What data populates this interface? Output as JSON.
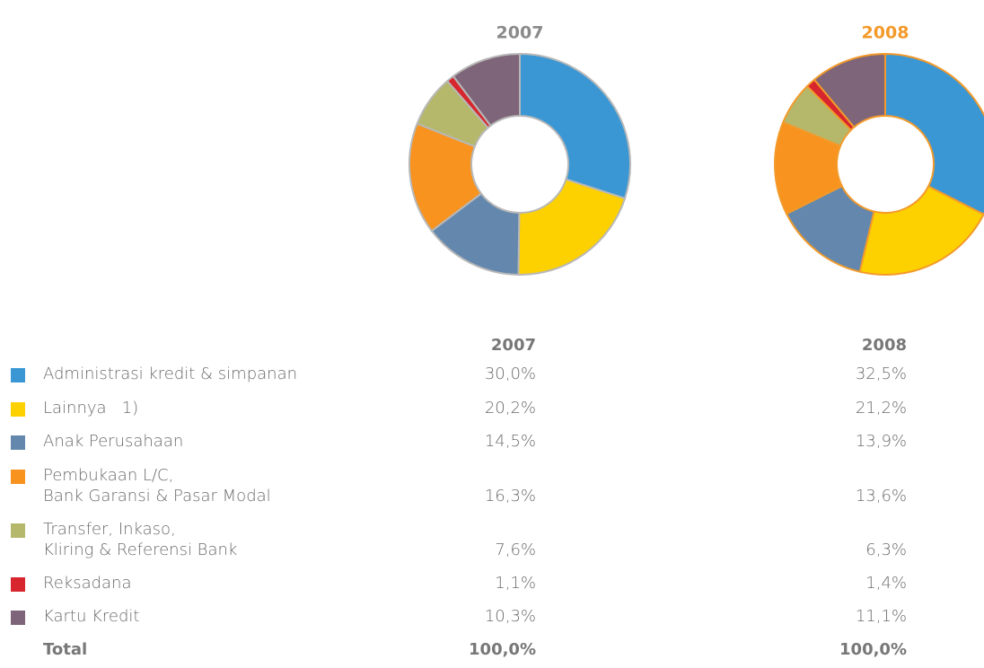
{
  "chart_data": {
    "type": "donut",
    "categories": [
      "Administrasi kredit & simpanan",
      "Lainnya   1)",
      "Anak Perusahaan",
      "Pembukaan L/C,\nBank Garansi & Pasar Modal",
      "Transfer, Inkaso,\nKliring & Referensi Bank",
      "Reksadana",
      "Kartu Kredit"
    ],
    "colors": [
      "#3a97d4",
      "#fdd000",
      "#6488ad",
      "#f7931e",
      "#b5b86a",
      "#d7262e",
      "#7e6579"
    ],
    "series": [
      {
        "name": "2007",
        "color": "#8a8a8a",
        "edge": "#b8b8b8",
        "values": [
          30.0,
          20.2,
          14.5,
          16.3,
          7.6,
          1.1,
          10.3
        ],
        "value_labels": [
          "30,0%",
          "20,2%",
          "14,5%",
          "16,3%",
          "7,6%",
          "1,1%",
          "10,3%"
        ]
      },
      {
        "name": "2008",
        "color": "#f39a2b",
        "edge": "#f39a2b",
        "values": [
          32.5,
          21.2,
          13.9,
          13.6,
          6.3,
          1.4,
          11.1
        ],
        "value_labels": [
          "32,5%",
          "21,2%",
          "13,9%",
          "13,6%",
          "6,3%",
          "1,4%",
          "11,1%"
        ]
      }
    ],
    "total_label": "Total",
    "totals": [
      "100,0%",
      "100,0%"
    ]
  }
}
